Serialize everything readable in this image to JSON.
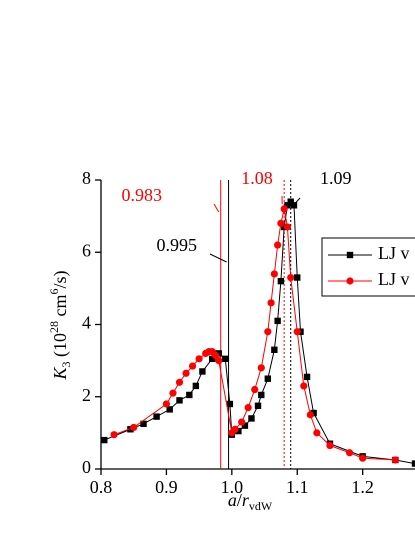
{
  "chart_data": {
    "type": "line",
    "xlabel": [
      "a",
      "/",
      "r",
      "vdW"
    ],
    "ylabel": [
      "K",
      "3",
      " (10",
      "28",
      " cm",
      "6",
      "/s)"
    ],
    "xlim": [
      0.8,
      1.28
    ],
    "ylim": [
      0,
      8
    ],
    "xticks": [
      {
        "value": 0.8,
        "label": "0.8"
      },
      0.9,
      {
        "value": 1.0,
        "label": "1.0"
      },
      1.1,
      1.2
    ],
    "yticks": [
      0,
      2,
      4,
      6,
      8
    ],
    "annotations": [
      {
        "value": 0.983,
        "color": "#ff0000"
      },
      {
        "value": 0.995,
        "color": "#000000"
      },
      {
        "value": 1.08,
        "color": "#ff0000"
      },
      {
        "value": 1.09,
        "color": "#000000"
      }
    ],
    "series": [
      {
        "name": "LJ v",
        "color": "#000000",
        "marker": "square",
        "x": [
          0.805,
          0.845,
          0.865,
          0.885,
          0.905,
          0.92,
          0.935,
          0.945,
          0.955,
          0.97,
          0.98,
          0.99,
          0.997,
          1.0,
          1.01,
          1.02,
          1.03,
          1.04,
          1.045,
          1.055,
          1.065,
          1.07,
          1.075,
          1.08,
          1.085,
          1.09,
          1.095,
          1.1,
          1.105,
          1.115,
          1.125,
          1.15,
          1.2,
          1.25,
          1.28
        ],
        "values": [
          0.8,
          1.1,
          1.25,
          1.45,
          1.65,
          1.9,
          2.05,
          2.3,
          2.7,
          3.05,
          3.2,
          3.05,
          1.8,
          0.95,
          1.05,
          1.2,
          1.4,
          1.75,
          2.05,
          2.5,
          3.3,
          4.1,
          5.2,
          6.7,
          7.3,
          7.4,
          7.3,
          5.3,
          3.8,
          2.55,
          1.55,
          0.7,
          0.35,
          0.25,
          0.15
        ]
      },
      {
        "name": "LJ v",
        "color": "#ff0000",
        "marker": "circle",
        "x": [
          0.82,
          0.85,
          0.9,
          0.91,
          0.92,
          0.93,
          0.94,
          0.95,
          0.96,
          0.965,
          0.97,
          0.975,
          0.98,
          1.0,
          1.005,
          1.015,
          1.025,
          1.035,
          1.045,
          1.055,
          1.06,
          1.065,
          1.07,
          1.075,
          1.08,
          1.085,
          1.09,
          1.1,
          1.11,
          1.12,
          1.13,
          1.15,
          1.18,
          1.2,
          1.25
        ],
        "values": [
          0.95,
          1.15,
          1.8,
          2.1,
          2.4,
          2.65,
          2.85,
          3.05,
          3.2,
          3.25,
          3.25,
          3.15,
          3.0,
          1.0,
          1.1,
          1.3,
          1.7,
          2.2,
          2.8,
          3.8,
          4.6,
          5.4,
          6.2,
          6.8,
          7.2,
          6.7,
          5.3,
          3.8,
          2.3,
          1.5,
          1.0,
          0.65,
          0.45,
          0.3,
          0.25
        ]
      }
    ]
  }
}
